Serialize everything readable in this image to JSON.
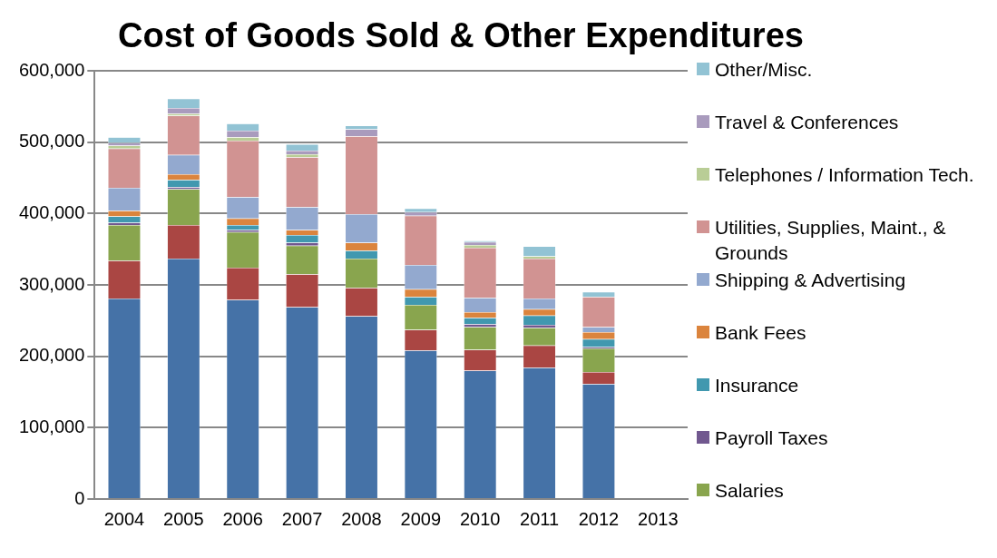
{
  "chart_data": {
    "type": "bar",
    "title": "Cost of Goods Sold & Other Expenditures",
    "stacked": true,
    "categories": [
      "2004",
      "2005",
      "2006",
      "2007",
      "2008",
      "2009",
      "2010",
      "2011",
      "2012",
      "2013"
    ],
    "series": [
      {
        "color": "#4572a7",
        "values": [
          281000,
          337000,
          279000,
          269000,
          256000,
          208000,
          180000,
          184000,
          161000,
          null
        ]
      },
      {
        "color": "#aa4643",
        "values": [
          53000,
          47000,
          45000,
          46000,
          40000,
          29000,
          29000,
          31000,
          17000,
          null
        ]
      },
      {
        "name": "Salaries",
        "color": "#89a54e",
        "values": [
          50000,
          50000,
          50000,
          40000,
          41000,
          35000,
          32000,
          25000,
          33000,
          null
        ]
      },
      {
        "name": "Payroll Taxes",
        "color": "#71588f",
        "values": [
          3000,
          3000,
          3000,
          4000,
          0,
          0,
          4000,
          4000,
          2000,
          null
        ]
      },
      {
        "name": "Insurance",
        "color": "#4198af",
        "values": [
          9000,
          10000,
          7000,
          11000,
          11000,
          11000,
          9000,
          13000,
          11000,
          null
        ]
      },
      {
        "name": "Bank Fees",
        "color": "#db843d",
        "values": [
          8000,
          8000,
          9000,
          7000,
          11000,
          11000,
          8000,
          9000,
          10000,
          null
        ]
      },
      {
        "name": "Shipping & Advertising",
        "color": "#93a9cf",
        "values": [
          32000,
          27000,
          30000,
          32000,
          40000,
          34000,
          20000,
          15000,
          7000,
          null
        ]
      },
      {
        "name": "Utilities, Supplies, Maint., & Grounds",
        "color": "#d19392",
        "values": [
          55000,
          55000,
          79000,
          70000,
          109000,
          69000,
          70000,
          56000,
          42000,
          null
        ]
      },
      {
        "name": "Telephones / Information Tech.",
        "color": "#b9cd96",
        "values": [
          4000,
          3000,
          5000,
          4000,
          0,
          0,
          4000,
          3000,
          null,
          null
        ]
      },
      {
        "name": "Travel & Conferences",
        "color": "#a99bbd",
        "values": [
          4000,
          8000,
          9000,
          5000,
          10000,
          5000,
          4000,
          null,
          0,
          null
        ]
      },
      {
        "name": "Other/Misc.",
        "color": "#92c3d4",
        "values": [
          8000,
          13000,
          10000,
          9000,
          5000,
          5000,
          2000,
          14000,
          7000,
          null
        ]
      }
    ],
    "ylim": [
      0,
      600000
    ],
    "yticks": [
      {
        "value": 0,
        "label": "0"
      },
      {
        "value": 100000,
        "label": "100,000"
      },
      {
        "value": 200000,
        "label": "200,000"
      },
      {
        "value": 300000,
        "label": "300,000"
      },
      {
        "value": 400000,
        "label": "400,000"
      },
      {
        "value": 500000,
        "label": "500,000"
      },
      {
        "value": 600000,
        "label": "600,000"
      }
    ],
    "grid": "y",
    "legend": "right"
  }
}
